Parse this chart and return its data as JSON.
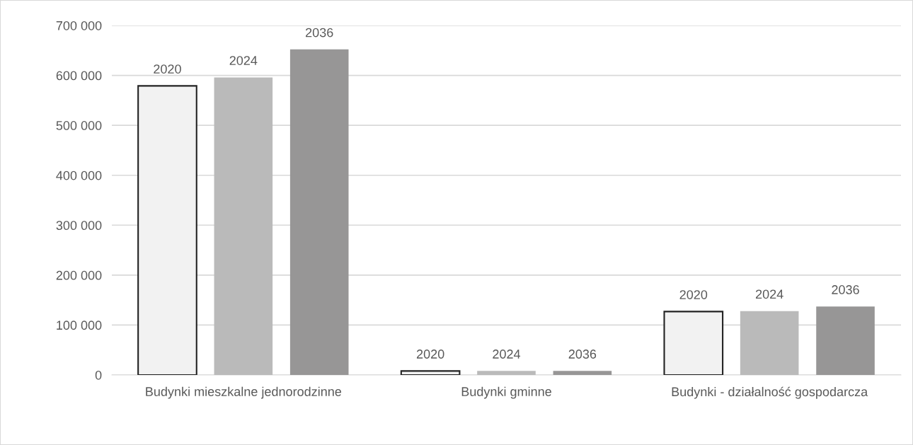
{
  "chart_data": {
    "type": "bar",
    "categories": [
      "Budynki mieszkalne jednorodzinne",
      "Budynki gminne",
      "Budynki - działalność gospodarcza"
    ],
    "series": [
      {
        "name": "2020",
        "color": "#f2f2f2",
        "values": [
          579000,
          8000,
          127000
        ]
      },
      {
        "name": "2024",
        "color": "#bababa",
        "values": [
          596000,
          8000,
          128000
        ]
      },
      {
        "name": "2036",
        "color": "#979696",
        "values": [
          652000,
          8000,
          137000
        ]
      }
    ],
    "ylim": [
      0,
      700000
    ],
    "yticks": [
      {
        "value": 0,
        "label": "0"
      },
      {
        "value": 100000,
        "label": "100 000"
      },
      {
        "value": 200000,
        "label": "200 000"
      },
      {
        "value": 300000,
        "label": "300 000"
      },
      {
        "value": 400000,
        "label": "400 000"
      },
      {
        "value": 500000,
        "label": "500 000"
      },
      {
        "value": 600000,
        "label": "600 000"
      },
      {
        "value": 700000,
        "label": "700 000"
      }
    ],
    "grid": "y",
    "legend": false
  }
}
